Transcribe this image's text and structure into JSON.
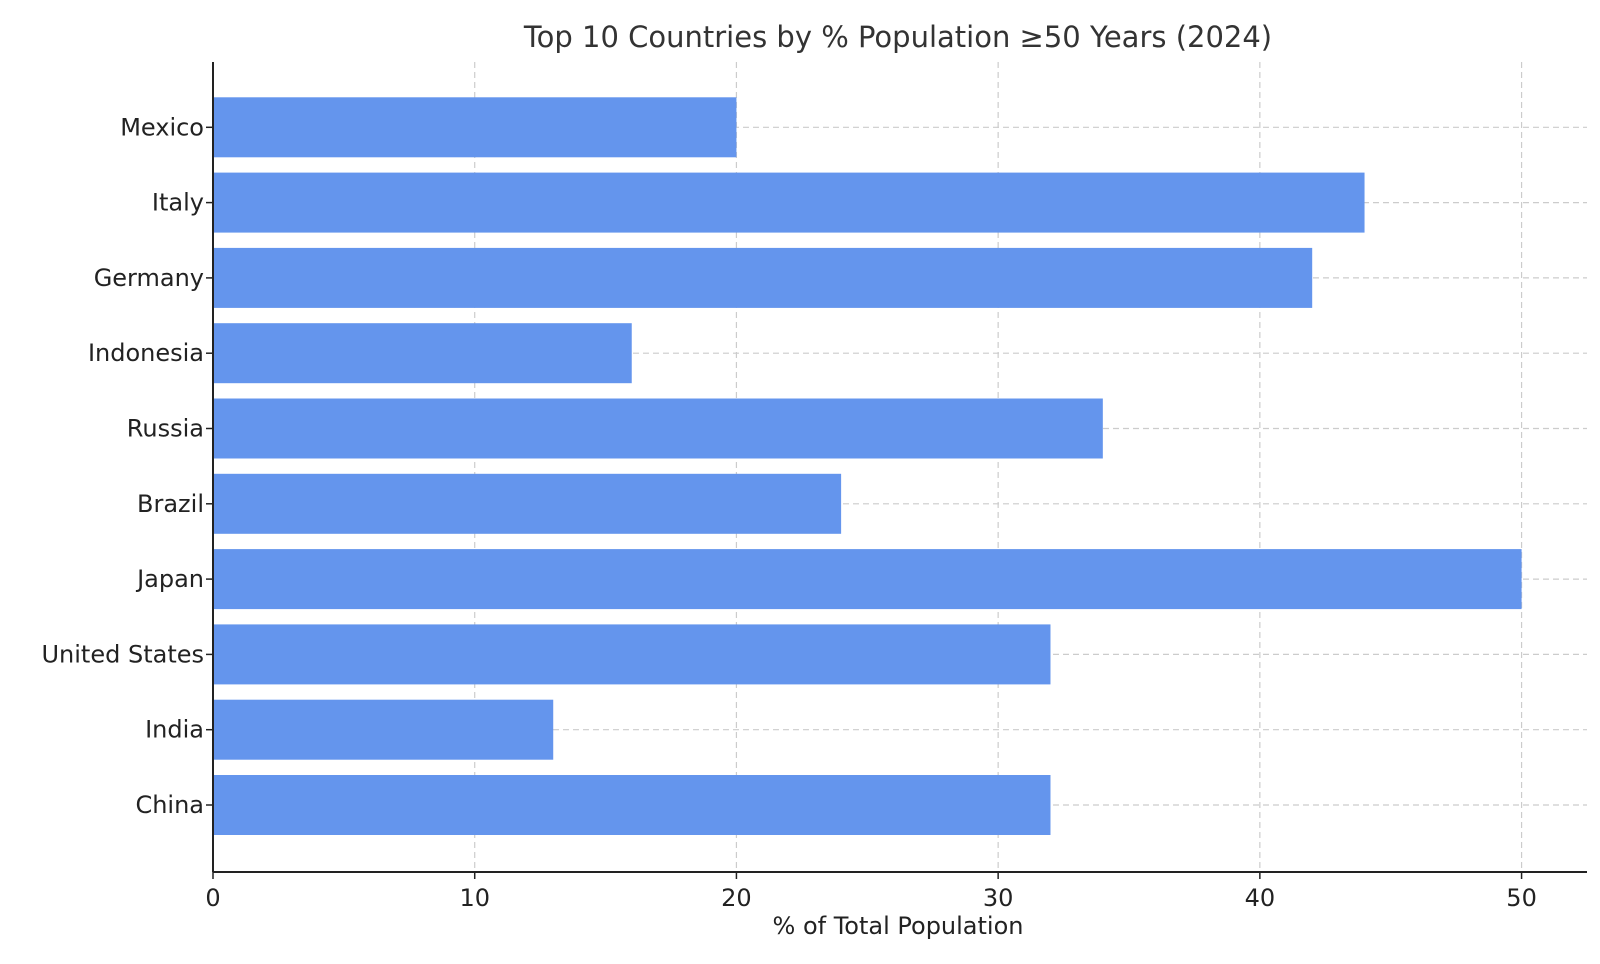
{
  "chart_data": {
    "type": "bar",
    "orientation": "horizontal",
    "title": "Top 10 Countries by % Population ≥50 Years (2024)",
    "xlabel": "% of Total Population",
    "ylabel": "",
    "categories": [
      "China",
      "India",
      "United States",
      "Japan",
      "Brazil",
      "Russia",
      "Indonesia",
      "Germany",
      "Italy",
      "Mexico"
    ],
    "values": [
      32,
      13,
      32,
      50,
      24,
      34,
      16,
      42,
      44,
      20
    ],
    "xlim": [
      0,
      52.5
    ],
    "xticks": [
      0,
      10,
      20,
      30,
      40,
      50
    ],
    "grid": true,
    "bar_color": "#6495ED"
  }
}
